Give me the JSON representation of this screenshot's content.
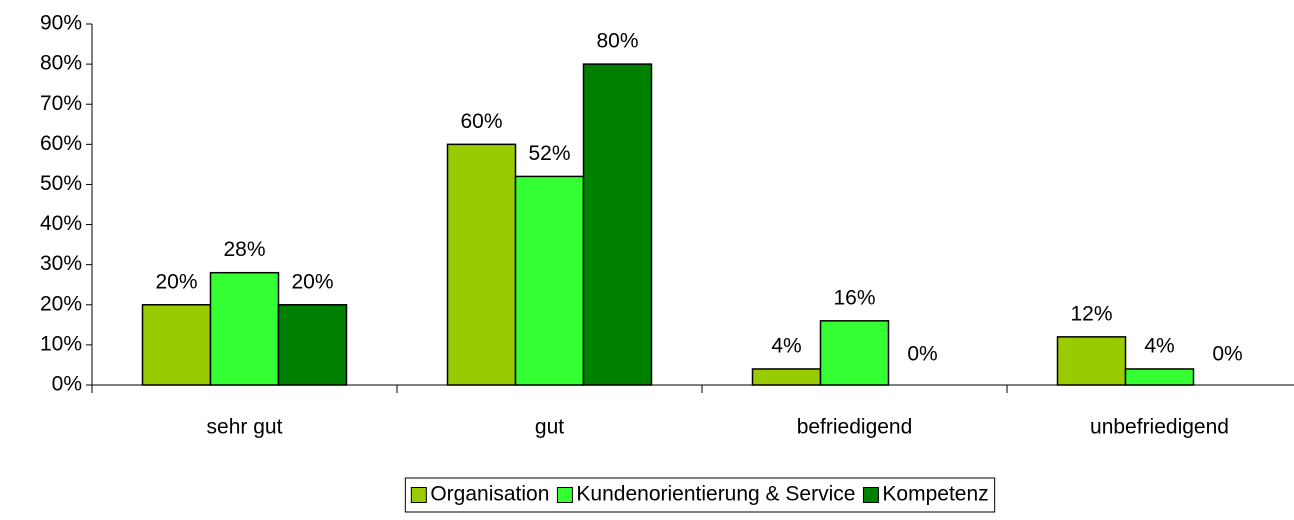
{
  "chart_data": {
    "type": "bar",
    "categories": [
      "sehr gut",
      "gut",
      "befriedigend",
      "unbefriedigend"
    ],
    "series": [
      {
        "name": "Organisation",
        "color": "#99cc00",
        "values": [
          20,
          60,
          4,
          12
        ],
        "value_labels": [
          "20%",
          "60%",
          "4%",
          "12%"
        ]
      },
      {
        "name": "Kundenorientierung & Service",
        "color": "#33ff33",
        "values": [
          28,
          52,
          16,
          4
        ],
        "value_labels": [
          "28%",
          "52%",
          "16%",
          "4%"
        ]
      },
      {
        "name": "Kompetenz",
        "color": "#008000",
        "values": [
          20,
          80,
          0,
          0
        ],
        "value_labels": [
          "20%",
          "80%",
          "0%",
          "0%"
        ]
      }
    ],
    "ylim": [
      0,
      90
    ],
    "yticks": [
      {
        "value": 0,
        "label": "0%"
      },
      {
        "value": 10,
        "label": "10%"
      },
      {
        "value": 20,
        "label": "20%"
      },
      {
        "value": 30,
        "label": "30%"
      },
      {
        "value": 40,
        "label": "40%"
      },
      {
        "value": 50,
        "label": "50%"
      },
      {
        "value": 60,
        "label": "60%"
      },
      {
        "value": 70,
        "label": "70%"
      },
      {
        "value": 80,
        "label": "80%"
      },
      {
        "value": 90,
        "label": "90%"
      }
    ],
    "legend": "bottom"
  }
}
